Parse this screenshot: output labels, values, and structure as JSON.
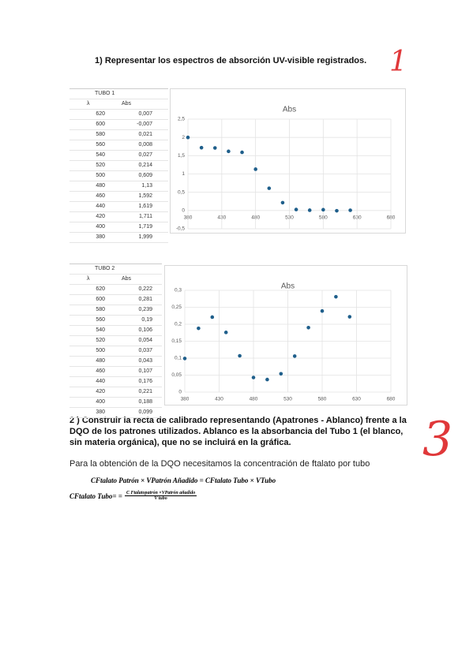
{
  "section1": {
    "heading": "1)  Representar los espectros de absorción UV-visible registrados.",
    "mark": "1"
  },
  "tables": [
    {
      "title": "TUBO 1",
      "headers": [
        "λ",
        "Abs"
      ],
      "rows": [
        [
          "620",
          "0,007"
        ],
        [
          "600",
          "-0,007"
        ],
        [
          "580",
          "0,021"
        ],
        [
          "560",
          "0,008"
        ],
        [
          "540",
          "0,027"
        ],
        [
          "520",
          "0,214"
        ],
        [
          "500",
          "0,609"
        ],
        [
          "480",
          "1,13"
        ],
        [
          "460",
          "1,592"
        ],
        [
          "440",
          "1,619"
        ],
        [
          "420",
          "1,711"
        ],
        [
          "400",
          "1,719"
        ],
        [
          "380",
          "1,999"
        ]
      ]
    },
    {
      "title": "TUBO 2",
      "headers": [
        "λ",
        "Abs"
      ],
      "rows": [
        [
          "620",
          "0,222"
        ],
        [
          "600",
          "0,281"
        ],
        [
          "580",
          "0,239"
        ],
        [
          "560",
          "0,19"
        ],
        [
          "540",
          "0,106"
        ],
        [
          "520",
          "0,054"
        ],
        [
          "500",
          "0,037"
        ],
        [
          "480",
          "0,043"
        ],
        [
          "460",
          "0,107"
        ],
        [
          "440",
          "0,176"
        ],
        [
          "420",
          "0,221"
        ],
        [
          "400",
          "0,188"
        ],
        [
          "380",
          "0,099"
        ]
      ]
    }
  ],
  "chart_data": [
    {
      "type": "scatter",
      "title": "Abs",
      "color": "#1f5f8b",
      "grid": true,
      "x": [
        620,
        600,
        580,
        560,
        540,
        520,
        500,
        480,
        460,
        440,
        420,
        400,
        380
      ],
      "values": [
        0.007,
        -0.007,
        0.021,
        0.008,
        0.027,
        0.214,
        0.609,
        1.13,
        1.592,
        1.619,
        1.711,
        1.719,
        1.999
      ],
      "xlim": [
        380,
        680
      ],
      "xticks": [
        380,
        430,
        480,
        530,
        580,
        630,
        680
      ],
      "ylim": [
        -0.5,
        2.5
      ],
      "yticks": [
        {
          "value": -0.5,
          "label": "-0,5"
        },
        0,
        {
          "value": 0.5,
          "label": "0,5"
        },
        1,
        {
          "value": 1.5,
          "label": "1,5"
        },
        2,
        {
          "value": 2.5,
          "label": "2,5"
        }
      ]
    },
    {
      "type": "scatter",
      "title": "Abs",
      "color": "#1f5f8b",
      "grid": true,
      "x": [
        620,
        600,
        580,
        560,
        540,
        520,
        500,
        480,
        460,
        440,
        420,
        400,
        380
      ],
      "values": [
        0.222,
        0.281,
        0.239,
        0.19,
        0.106,
        0.054,
        0.037,
        0.043,
        0.107,
        0.176,
        0.221,
        0.188,
        0.099
      ],
      "xlim": [
        380,
        680
      ],
      "xticks": [
        380,
        430,
        480,
        530,
        580,
        630,
        680
      ],
      "ylim": [
        0,
        0.3
      ],
      "yticks": [
        0,
        {
          "value": 0.05,
          "label": "0,05"
        },
        {
          "value": 0.1,
          "label": "0,1"
        },
        {
          "value": 0.15,
          "label": "0,15"
        },
        {
          "value": 0.2,
          "label": "0,2"
        },
        {
          "value": 0.25,
          "label": "0,25"
        },
        {
          "value": 0.3,
          "label": "0,3"
        }
      ]
    }
  ],
  "section2": {
    "heading": "2 )  Construir la recta de calibrado representando (Apatrones - Ablanco) frente a la DQO de los patrones utilizados. Ablanco es la absorbancia del Tubo 1 (el blanco, sin materia orgánica), que no se incluirá en la gráfica.",
    "mark": "3",
    "paragraph": "Para la obtención de la DQO necesitamos la concentración de ftalato por tubo",
    "formula1": "CFtalato Patrón × VPatrón Añadido = CFtalato Tubo × VTubo",
    "formula2_left": "CFtalato Tubo= =",
    "formula2_numerator": "C Ftalatopatrón ×VPatrón añadido",
    "formula2_denominator": "V tubo"
  }
}
